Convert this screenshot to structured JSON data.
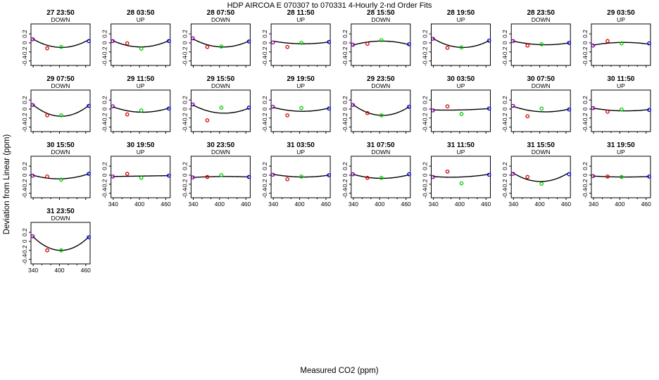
{
  "title": "HDP    AIRCOA E    070307 to 070331    4-Hourly 2-nd Order Fits",
  "xlabel": "Measured CO2 (ppm)",
  "ylabel": "Deviation from Linear (ppm)",
  "colors": {
    "low": "#8800aa",
    "mid1": "#dd0000",
    "mid2": "#00cc00",
    "high": "#0000cc",
    "curve": "#000000",
    "frame": "#000000"
  },
  "chart_data": {
    "type": "scatter",
    "description": "Small multiples: 4-hourly 2nd-order fit residuals vs measured CO2",
    "xlim": [
      335,
      470
    ],
    "ylim": [
      -0.5,
      0.42
    ],
    "xticks": [
      340,
      400,
      460
    ],
    "xtick_labels": [
      "340",
      "400",
      "460"
    ],
    "yticks": [
      -0.4,
      -0.2,
      0,
      0.2
    ],
    "ytick_labels": [
      "-0.4",
      "-0.2",
      "0",
      "0.2"
    ],
    "standards_x": [
      339,
      372,
      404,
      467
    ],
    "panels": [
      {
        "label": "27 23:50",
        "dir": "DOWN",
        "y": [
          0.08,
          -0.12,
          -0.09,
          0.04
        ],
        "curve": [
          0.09,
          -0.1,
          0.07
        ]
      },
      {
        "label": "28 03:50",
        "dir": "UP",
        "y": [
          0.04,
          -0.01,
          -0.13,
          0.04
        ],
        "curve": [
          0.05,
          -0.09,
          0.05
        ]
      },
      {
        "label": "28 07:50",
        "dir": "DOWN",
        "y": [
          0.1,
          -0.09,
          -0.08,
          0.03
        ],
        "curve": [
          0.09,
          -0.09,
          0.04
        ]
      },
      {
        "label": "28 11:50",
        "dir": "UP",
        "y": [
          0.01,
          -0.09,
          0.0,
          0.02
        ],
        "curve": [
          0.04,
          -0.02,
          0.02
        ]
      },
      {
        "label": "28 15:50",
        "dir": "DOWN",
        "y": [
          -0.04,
          -0.02,
          0.06,
          -0.03
        ],
        "curve": [
          -0.05,
          0.04,
          -0.04
        ]
      },
      {
        "label": "28 19:50",
        "dir": "UP",
        "y": [
          0.09,
          -0.11,
          -0.1,
          0.05
        ],
        "curve": [
          0.1,
          -0.1,
          0.05
        ]
      },
      {
        "label": "28 23:50",
        "dir": "DOWN",
        "y": [
          0.04,
          -0.06,
          -0.03,
          0.0
        ],
        "curve": [
          0.04,
          -0.04,
          0.0
        ]
      },
      {
        "label": "29 03:50",
        "dir": "UP",
        "y": [
          -0.06,
          0.04,
          -0.01,
          -0.01
        ],
        "curve": [
          -0.05,
          0.01,
          -0.03
        ]
      },
      {
        "label": "29 07:50",
        "dir": "DOWN",
        "y": [
          0.09,
          -0.14,
          -0.14,
          0.07
        ],
        "curve": [
          0.1,
          -0.16,
          0.08
        ]
      },
      {
        "label": "29 11:50",
        "dir": "UP",
        "y": [
          0.06,
          -0.12,
          -0.03,
          0.01
        ],
        "curve": [
          0.05,
          -0.07,
          0.02
        ]
      },
      {
        "label": "29 15:50",
        "dir": "DOWN",
        "y": [
          0.1,
          -0.25,
          0.03,
          0.03
        ],
        "curve": [
          0.09,
          -0.09,
          0.02
        ]
      },
      {
        "label": "29 19:50",
        "dir": "UP",
        "y": [
          0.05,
          -0.14,
          0.02,
          0.01
        ],
        "curve": [
          0.04,
          -0.05,
          0.02
        ]
      },
      {
        "label": "29 23:50",
        "dir": "DOWN",
        "y": [
          0.09,
          -0.09,
          -0.14,
          0.05
        ],
        "curve": [
          0.1,
          -0.14,
          0.05
        ]
      },
      {
        "label": "30 03:50",
        "dir": "UP",
        "y": [
          -0.03,
          0.06,
          -0.11,
          0.01
        ],
        "curve": [
          -0.02,
          -0.02,
          0.01
        ]
      },
      {
        "label": "30 07:50",
        "dir": "DOWN",
        "y": [
          0.07,
          -0.16,
          0.01,
          -0.01
        ],
        "curve": [
          0.06,
          -0.06,
          0.0
        ]
      },
      {
        "label": "30 11:50",
        "dir": "UP",
        "y": [
          0.02,
          -0.06,
          -0.01,
          -0.02
        ],
        "curve": [
          0.02,
          -0.04,
          -0.01
        ]
      },
      {
        "label": "30 15:50",
        "dir": "DOWN",
        "y": [
          -0.01,
          -0.03,
          -0.1,
          0.03
        ],
        "curve": [
          0.0,
          -0.08,
          0.03
        ]
      },
      {
        "label": "30 19:50",
        "dir": "UP",
        "y": [
          -0.03,
          0.03,
          -0.06,
          -0.01
        ],
        "curve": [
          -0.03,
          -0.02,
          -0.01
        ]
      },
      {
        "label": "30 23:50",
        "dir": "DOWN",
        "y": [
          -0.05,
          -0.04,
          0.0,
          -0.04
        ],
        "curve": [
          -0.05,
          -0.03,
          -0.04
        ]
      },
      {
        "label": "31 03:50",
        "dir": "UP",
        "y": [
          0.01,
          -0.09,
          -0.03,
          0.0
        ],
        "curve": [
          0.02,
          -0.04,
          0.0
        ]
      },
      {
        "label": "31 07:50",
        "dir": "DOWN",
        "y": [
          0.02,
          -0.06,
          -0.06,
          0.02
        ],
        "curve": [
          0.02,
          -0.07,
          0.01
        ]
      },
      {
        "label": "31 11:50",
        "dir": "UP",
        "y": [
          -0.04,
          0.08,
          -0.18,
          0.01
        ],
        "curve": [
          -0.03,
          -0.04,
          0.02
        ]
      },
      {
        "label": "31 15:50",
        "dir": "DOWN",
        "y": [
          0.03,
          -0.04,
          -0.19,
          0.02
        ],
        "curve": [
          0.05,
          -0.14,
          0.06
        ]
      },
      {
        "label": "31 19:50",
        "dir": "UP",
        "y": [
          -0.02,
          -0.03,
          -0.04,
          -0.03
        ],
        "curve": [
          -0.02,
          -0.04,
          -0.03
        ]
      },
      {
        "label": "31 23:50",
        "dir": "DOWN",
        "y": [
          0.11,
          -0.2,
          -0.2,
          0.09
        ],
        "curve": [
          0.11,
          -0.2,
          0.1
        ]
      }
    ]
  }
}
